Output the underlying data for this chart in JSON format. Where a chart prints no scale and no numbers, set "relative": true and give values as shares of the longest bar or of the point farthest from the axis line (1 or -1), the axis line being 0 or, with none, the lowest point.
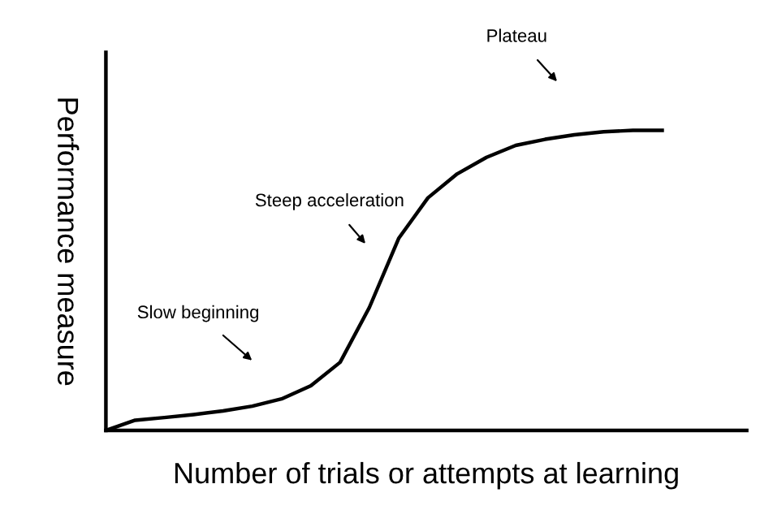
{
  "chart_data": {
    "type": "line",
    "relative": true,
    "xlabel": "Number of trials or attempts at learning",
    "ylabel": "Performance measure",
    "categories": [
      null,
      null,
      null,
      null,
      null,
      null,
      null,
      null,
      null,
      null,
      null,
      null,
      null,
      null,
      null,
      null,
      null,
      null,
      null,
      null
    ],
    "series": [
      {
        "color": "#000000",
        "values": [
          0,
          0.034,
          0.043,
          0.053,
          0.065,
          0.081,
          0.105,
          0.149,
          0.227,
          0.41,
          0.64,
          0.775,
          0.855,
          0.91,
          0.95,
          0.97,
          0.985,
          0.995,
          1.0,
          1.0
        ]
      }
    ],
    "annotations": [
      "Slow beginning",
      "Steep acceleration",
      "Plateau"
    ],
    "legend": false,
    "marker": "none",
    "line_style": "solid"
  }
}
